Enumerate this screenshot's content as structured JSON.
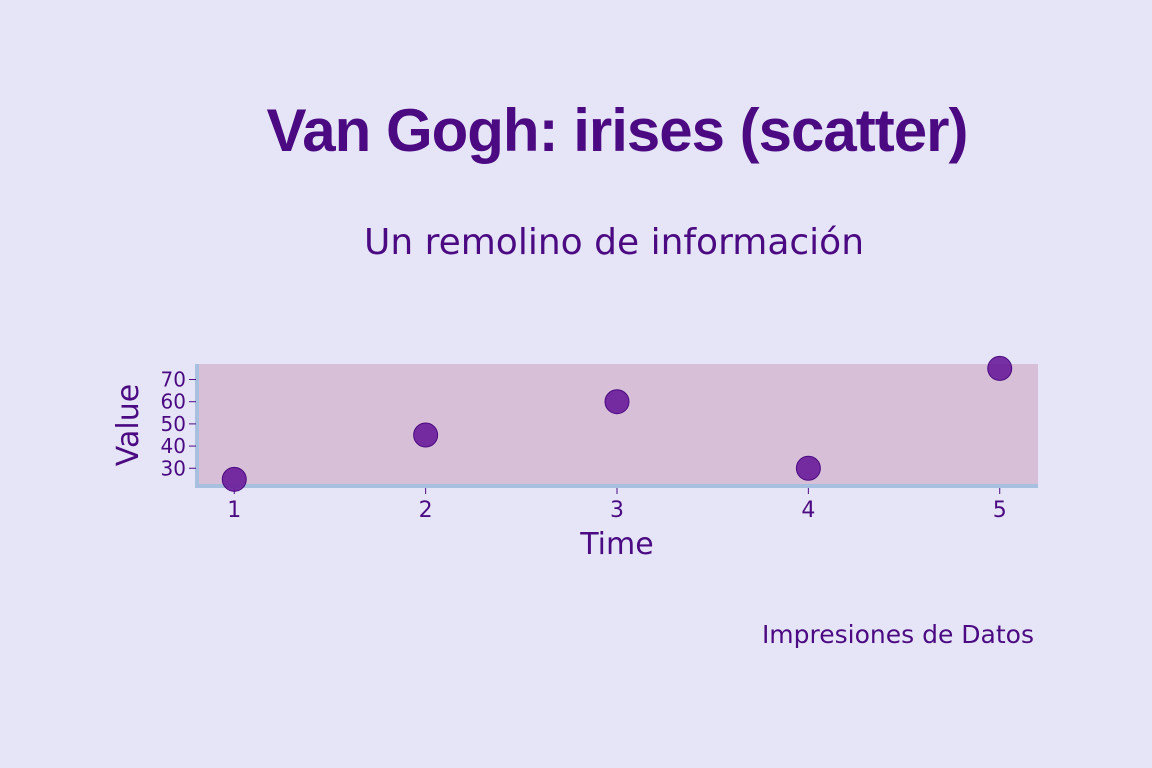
{
  "title": "Van Gogh: irises (scatter)",
  "subtitle": "Un remolino de información",
  "caption": "Impresiones de Datos",
  "colors": {
    "background": "#e6e5f8",
    "plot_background": "#d7bfd7",
    "axis_line": "#a7c0df",
    "text": "#4b0a82",
    "marker": "#6a1b9a"
  },
  "chart_data": {
    "type": "scatter",
    "x": [
      1,
      2,
      3,
      4,
      5
    ],
    "y": [
      25,
      45,
      60,
      30,
      75
    ],
    "xlabel": "Time",
    "ylabel": "Value",
    "x_ticks": [
      1,
      2,
      3,
      4,
      5
    ],
    "y_ticks": [
      30,
      40,
      50,
      60,
      70
    ],
    "xlim": [
      0.8,
      5.2
    ],
    "ylim": [
      22,
      77
    ],
    "grid": false
  }
}
